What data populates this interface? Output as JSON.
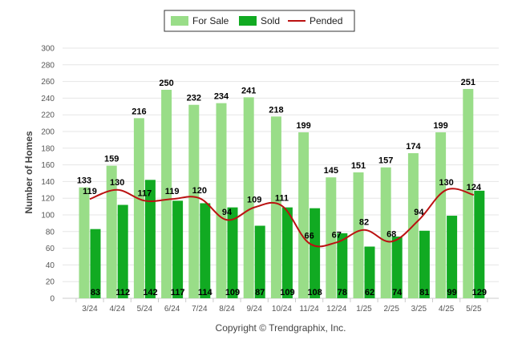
{
  "chart_data": {
    "type": "bar",
    "categories": [
      "3/24",
      "4/24",
      "5/24",
      "6/24",
      "7/24",
      "8/24",
      "9/24",
      "10/24",
      "11/24",
      "12/24",
      "1/25",
      "2/25",
      "3/25",
      "4/25",
      "5/25"
    ],
    "series": [
      {
        "name": "For Sale",
        "type": "bar",
        "color": "#99dd88",
        "values": [
          133,
          159,
          216,
          250,
          232,
          234,
          241,
          218,
          199,
          145,
          151,
          157,
          174,
          199,
          251
        ]
      },
      {
        "name": "Sold",
        "type": "bar",
        "color": "#11aa22",
        "values": [
          83,
          112,
          142,
          117,
          114,
          109,
          87,
          109,
          108,
          78,
          62,
          74,
          81,
          99,
          129
        ]
      },
      {
        "name": "Pended",
        "type": "line",
        "color": "#bb1111",
        "values": [
          119,
          130,
          117,
          119,
          120,
          94,
          109,
          111,
          66,
          67,
          82,
          68,
          94,
          130,
          124
        ]
      }
    ],
    "ylabel": "Number of Homes",
    "ylim": [
      0,
      300
    ],
    "yticks": [
      "0",
      "20",
      "40",
      "60",
      "80",
      "100",
      "120",
      "140",
      "160",
      "180",
      "200",
      "220",
      "240",
      "260",
      "280",
      "300"
    ],
    "grid": true,
    "legend": "top-center",
    "copyright": "Copyright © Trendgraphix, Inc."
  }
}
